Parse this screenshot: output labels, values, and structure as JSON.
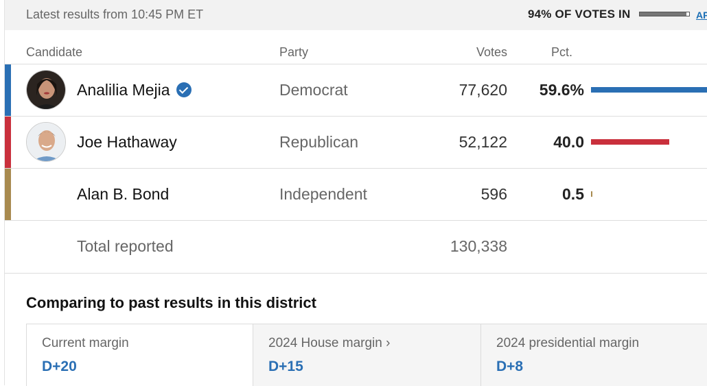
{
  "status": {
    "latest_text": "Latest results from 10:45 PM ET",
    "votes_in_text": "94% OF VOTES IN",
    "votes_in_fraction": 0.94,
    "source": "AP"
  },
  "table": {
    "headers": {
      "candidate": "Candidate",
      "party": "Party",
      "votes": "Votes",
      "pct": "Pct."
    },
    "rows": [
      {
        "name": "Analilia Mejia",
        "winner": true,
        "party": "Democrat",
        "votes": "77,620",
        "pct": "59.6%",
        "pct_value": 59.6,
        "color": "#2a6fb4",
        "avatar": "photo-analilia-mejia"
      },
      {
        "name": "Joe Hathaway",
        "winner": false,
        "party": "Republican",
        "votes": "52,122",
        "pct": "40.0",
        "pct_value": 40.0,
        "color": "#c9303c",
        "avatar": "photo-joe-hathaway"
      },
      {
        "name": "Alan B. Bond",
        "winner": false,
        "party": "Independent",
        "votes": "596",
        "pct": "0.5",
        "pct_value": 0.5,
        "color": "#a88a4f",
        "avatar": ""
      }
    ],
    "total_label": "Total reported",
    "total_votes": "130,338"
  },
  "comparison": {
    "title": "Comparing to past results in this district",
    "cards": [
      {
        "label": "Current margin",
        "value": "D+20"
      },
      {
        "label": "2024 House margin ›",
        "value": "D+15"
      },
      {
        "label": "2024 presidential margin",
        "value": "D+8"
      }
    ]
  }
}
